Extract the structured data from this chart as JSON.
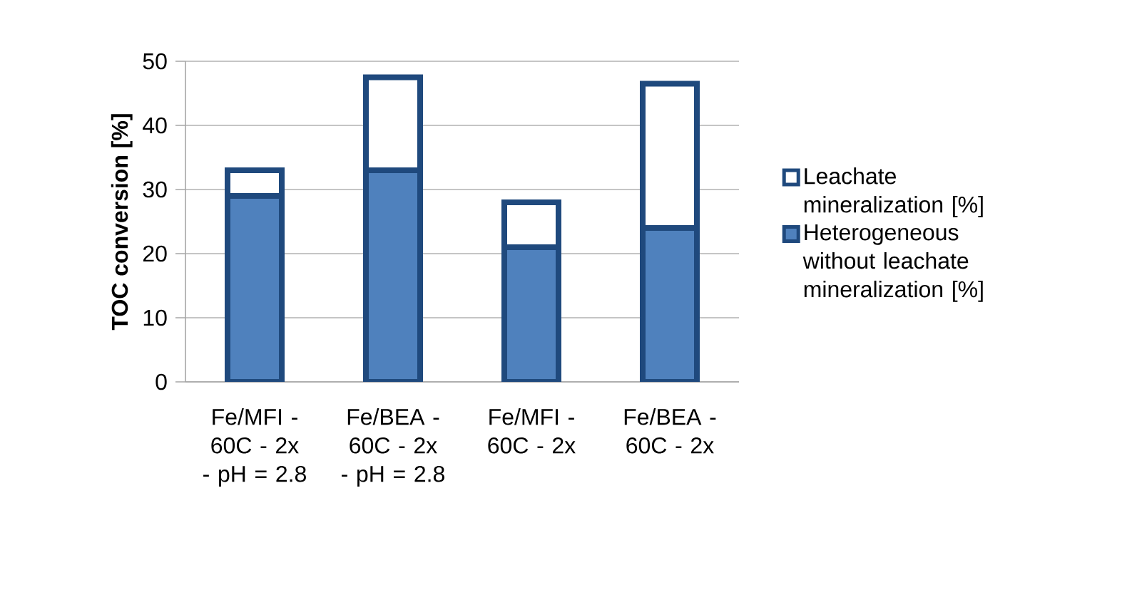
{
  "chart_data": {
    "type": "bar",
    "stacked": true,
    "ylabel": "TOC conversion [%]",
    "categories": [
      "Fe/MFI - 60C - 2x - pH = 2.8",
      "Fe/BEA - 60C - 2x - pH = 2.8",
      "Fe/MFI - 60C - 2x",
      "Fe/BEA - 60C - 2x"
    ],
    "series": [
      {
        "name": "Heterogeneous without leachate mineralization [%]",
        "color": "#4f81bd",
        "values": [
          29,
          33,
          21,
          24
        ]
      },
      {
        "name": "Leachate mineralization [%]",
        "color": "#ffffff",
        "values": [
          4,
          14.5,
          7,
          22.5
        ]
      }
    ],
    "ylim": [
      0,
      50
    ],
    "yticks": [
      0,
      10,
      20,
      30,
      40,
      50
    ],
    "grid": "y",
    "legend": "right"
  }
}
